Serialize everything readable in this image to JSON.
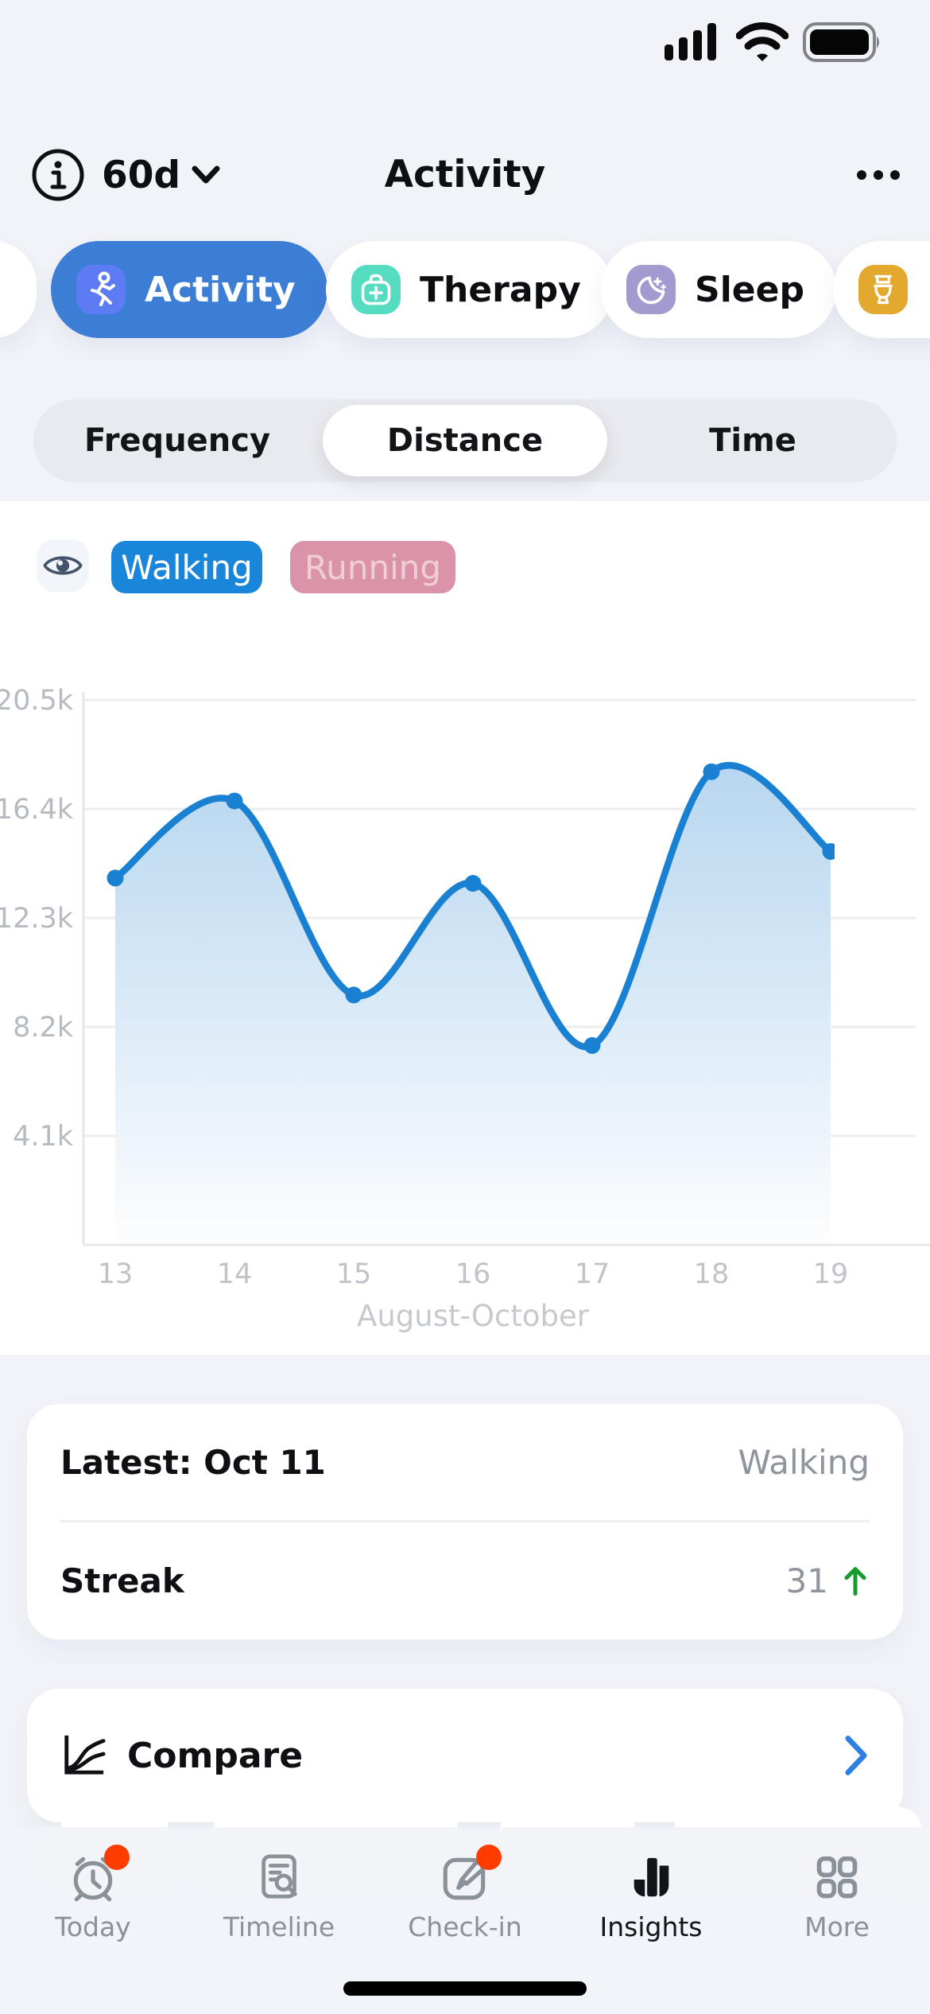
{
  "header": {
    "period": "60d",
    "title": "Activity"
  },
  "category_chips": {
    "items": [
      {
        "label": "Activity",
        "selected": true,
        "icon": "runner-icon",
        "icon_bg": "#5d7bf2"
      },
      {
        "label": "Therapy",
        "selected": false,
        "icon": "first-aid-icon",
        "icon_bg": "#56dcc0"
      },
      {
        "label": "Sleep",
        "selected": false,
        "icon": "moon-icon",
        "icon_bg": "#a39bd0"
      },
      {
        "label": "",
        "selected": false,
        "icon": "toilet-icon",
        "icon_bg": "#e3a92e"
      }
    ]
  },
  "metric_tabs": {
    "items": [
      {
        "label": "Frequency",
        "selected": false
      },
      {
        "label": "Distance",
        "selected": true
      },
      {
        "label": "Time",
        "selected": false
      }
    ]
  },
  "series_toggles": {
    "eye_icon": "eye-icon",
    "items": [
      {
        "label": "Walking",
        "active": true,
        "color": "#1a86da"
      },
      {
        "label": "Running",
        "active": false,
        "color": "#db93a9"
      }
    ]
  },
  "chart_data": {
    "type": "area",
    "title": "",
    "xlabel": "August-October",
    "ylabel": "",
    "x_ticks": [
      "13",
      "14",
      "15",
      "16",
      "17",
      "18",
      "19"
    ],
    "y_ticks": [
      "20.5k",
      "16.4k",
      "12.3k",
      "8.2k",
      "4.1k"
    ],
    "y_tick_values": [
      20500,
      16400,
      12300,
      8200,
      4100
    ],
    "ylim": [
      0,
      20500
    ],
    "grid": true,
    "line_color": "#1a80d2",
    "series": [
      {
        "name": "Walking",
        "values": [
          13800,
          16700,
          9400,
          13600,
          7500,
          17800,
          14800
        ]
      }
    ],
    "hidden_series": [
      "Running"
    ]
  },
  "stats_card": {
    "rows": [
      {
        "label": "Latest: Oct 11",
        "value": "Walking",
        "trend": ""
      },
      {
        "label": "Streak",
        "value": "31",
        "trend": "up"
      }
    ],
    "trend_up_color": "#169a2c"
  },
  "compare_card": {
    "label": "Compare",
    "icon": "compare-chart-icon",
    "chevron_color": "#2f7ee2"
  },
  "tab_bar": {
    "items": [
      {
        "label": "Today",
        "badge": true,
        "active": false,
        "icon": "alarm-clock-icon"
      },
      {
        "label": "Timeline",
        "badge": false,
        "active": false,
        "icon": "document-search-icon"
      },
      {
        "label": "Check-in",
        "badge": true,
        "active": false,
        "icon": "edit-square-icon"
      },
      {
        "label": "Insights",
        "badge": false,
        "active": true,
        "icon": "bar-chart-icon"
      },
      {
        "label": "More",
        "badge": false,
        "active": false,
        "icon": "grid-icon"
      }
    ]
  }
}
